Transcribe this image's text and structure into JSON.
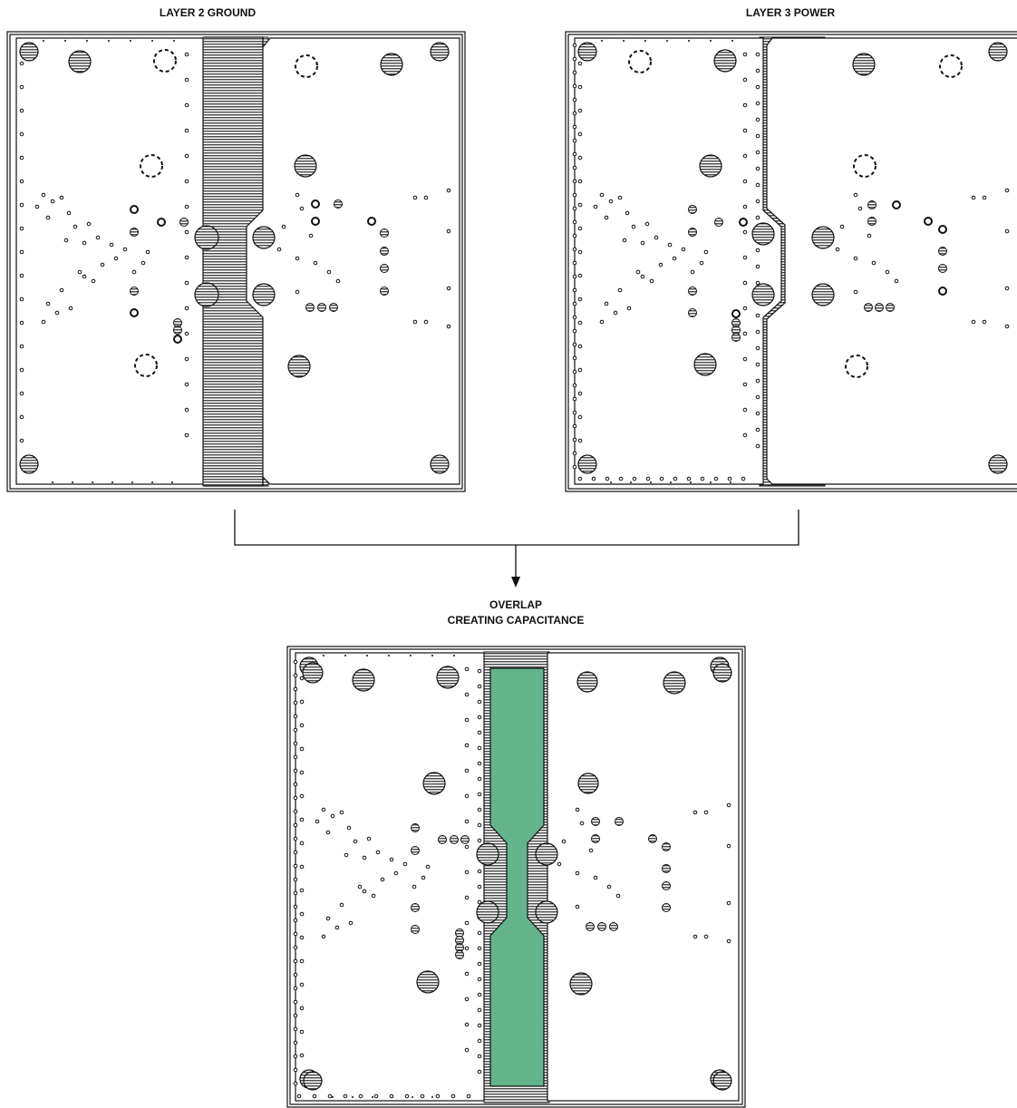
{
  "labels": {
    "layer2": "LAYER 2 GROUND",
    "layer3": "LAYER 3 POWER",
    "overlap_line1": "OVERLAP",
    "overlap_line2": "CREATING CAPACITANCE"
  },
  "colors": {
    "overlap_fill": "#63b38b",
    "line": "#111111"
  }
}
